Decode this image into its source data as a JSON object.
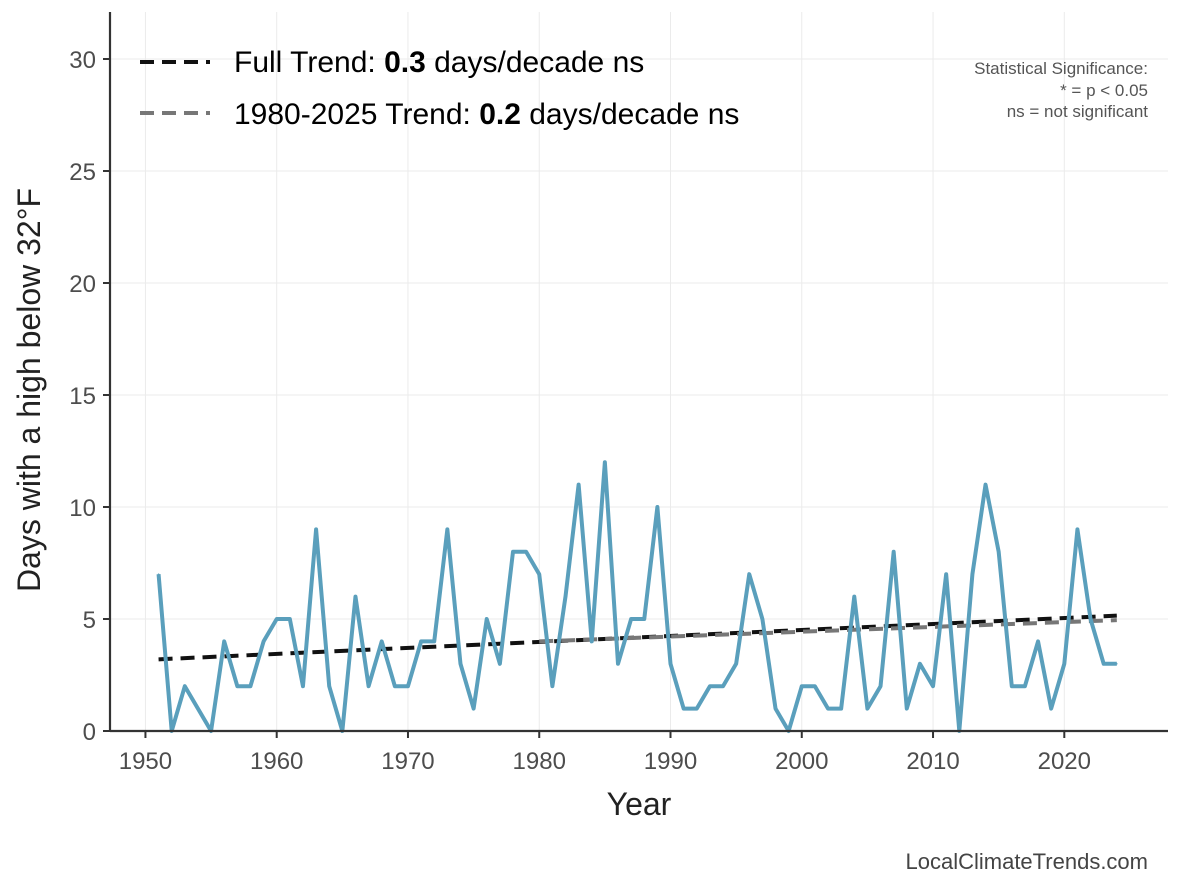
{
  "chart_data": {
    "type": "line",
    "xlabel": "Year",
    "ylabel": "Days with a high below 32°F",
    "xlim": [
      1947.3,
      1927.9
    ],
    "ylim": [
      0,
      32
    ],
    "x_ticks": [
      1950,
      1960,
      1970,
      1980,
      1990,
      2000,
      2010,
      2020
    ],
    "y_ticks": [
      0,
      5,
      10,
      15,
      20,
      25,
      30
    ],
    "grid": true,
    "legend_position": "top-left",
    "series": [
      {
        "color": "#5a9fbc",
        "x": [
          1951,
          1952,
          1953,
          1954,
          1955,
          1956,
          1957,
          1958,
          1959,
          1960,
          1961,
          1962,
          1963,
          1964,
          1965,
          1966,
          1967,
          1968,
          1969,
          1970,
          1971,
          1972,
          1973,
          1974,
          1975,
          1976,
          1977,
          1978,
          1979,
          1980,
          1981,
          1982,
          1983,
          1984,
          1985,
          1986,
          1987,
          1988,
          1989,
          1990,
          1991,
          1992,
          1993,
          1994,
          1995,
          1996,
          1997,
          1998,
          1999,
          2000,
          2001,
          2002,
          2003,
          2004,
          2005,
          2006,
          2007,
          2008,
          2009,
          2010,
          2011,
          2012,
          2013,
          2014,
          2015,
          2016,
          2017,
          2018,
          2019,
          2020,
          2021,
          2022,
          2023,
          2024
        ],
        "values": [
          7,
          0,
          2,
          1,
          0,
          4,
          2,
          2,
          4,
          5,
          5,
          2,
          9,
          2,
          0,
          6,
          2,
          4,
          2,
          2,
          4,
          4,
          9,
          3,
          1,
          5,
          3,
          8,
          8,
          7,
          2,
          6,
          11,
          4,
          12,
          3,
          5,
          5,
          10,
          3,
          1,
          1,
          2,
          2,
          3,
          7,
          5,
          1,
          0,
          2,
          2,
          1,
          1,
          6,
          1,
          2,
          8,
          1,
          3,
          2,
          7,
          0,
          7,
          11,
          8,
          2,
          2,
          4,
          1,
          3,
          9,
          5,
          3,
          3
        ]
      }
    ],
    "trend_lines": [
      {
        "label_prefix": "Full Trend: ",
        "value": "0.3",
        "label_suffix": " days/decade ns",
        "color": "#111111",
        "x": [
          1951,
          2024
        ],
        "y": [
          3.2,
          5.15
        ]
      },
      {
        "label_prefix": "1980-2025 Trend: ",
        "value": "0.2",
        "label_suffix": " days/decade ns",
        "color": "#777777",
        "x": [
          1980,
          2024
        ],
        "y": [
          4.0,
          4.95
        ]
      }
    ],
    "significance_note": [
      "Statistical Significance:",
      "* = p < 0.05",
      "ns = not significant"
    ],
    "credit": "LocalClimateTrends.com"
  }
}
